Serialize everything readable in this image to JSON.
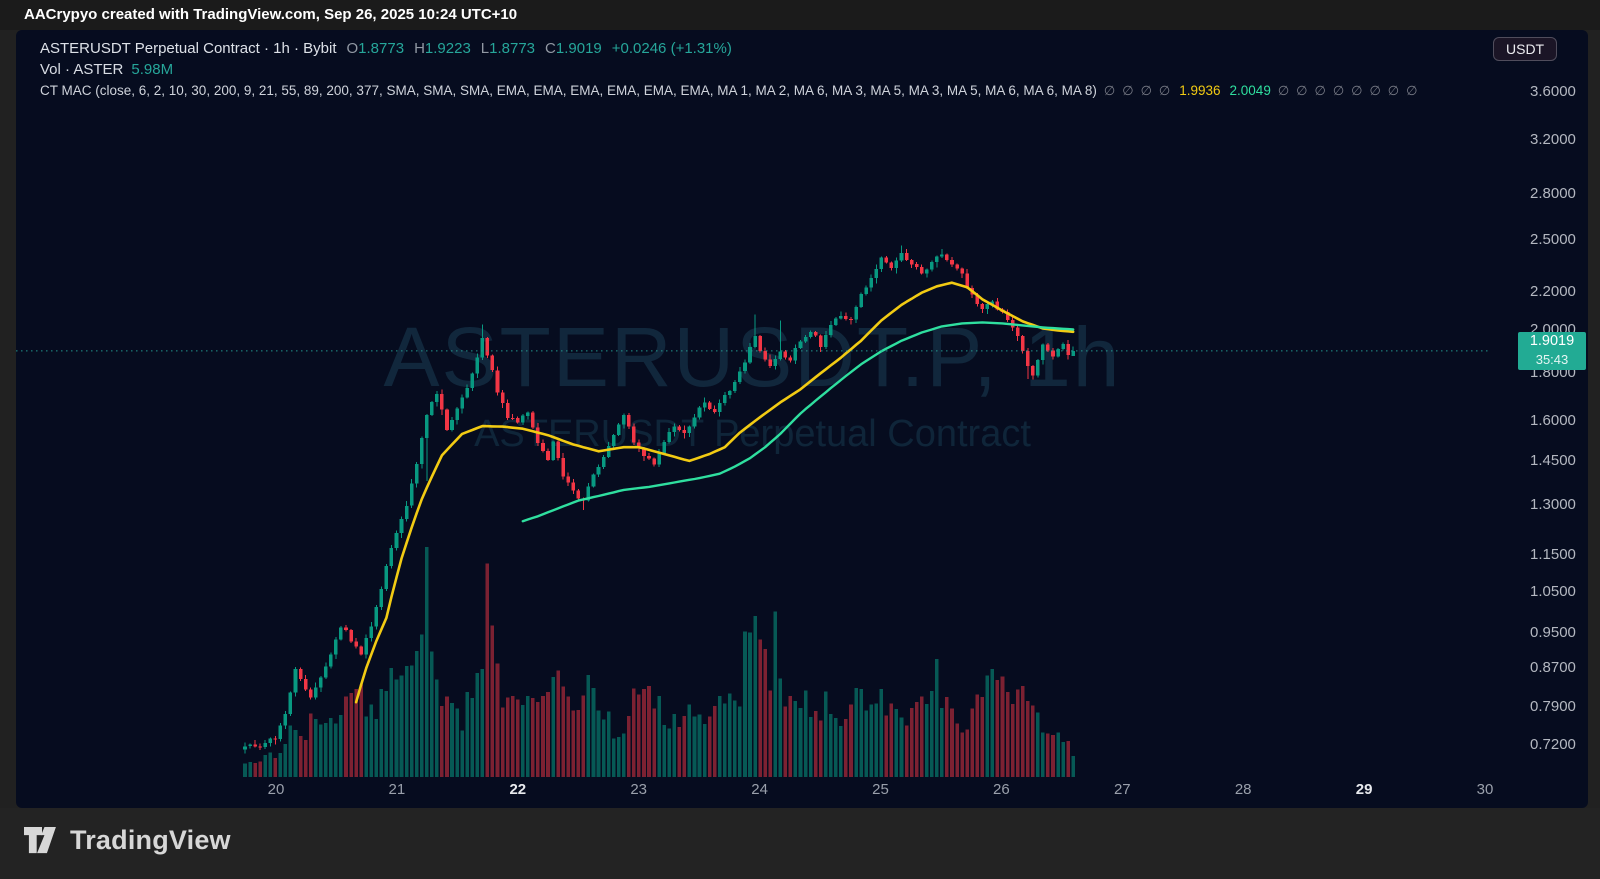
{
  "attribution_bar": {
    "text": "AACrypyo created with TradingView.com, Sep 26, 2025 10:24 UTC+10"
  },
  "header": {
    "symbol_line": {
      "text": "ASTERUSDT Perpetual Contract · 1h · Bybit",
      "ohlc": [
        {
          "label": "O",
          "value": "1.8773"
        },
        {
          "label": "H",
          "value": "1.9223"
        },
        {
          "label": "L",
          "value": "1.8773"
        },
        {
          "label": "C",
          "value": "1.9019"
        }
      ],
      "change": "+0.0246 (+1.31%)"
    },
    "volume_line": {
      "label": "Vol · ASTER",
      "value": "5.98M"
    },
    "indicator_line": {
      "name": "CT MAC (close, 6, 2, 10, 30, 200, 9, 21, 55, 89, 200, 377, SMA, SMA, SMA, EMA, EMA, EMA, EMA, EMA, EMA, MA 1, MA 2, MA 6, MA 3, MA 5, MA 3, MA 5, MA 6, MA 6, MA 8)",
      "empty_symbol": "∅",
      "empty_before": 4,
      "values": [
        {
          "text": "1.9936",
          "color": "#f2cb13"
        },
        {
          "text": "2.0049",
          "color": "#2fdf9f"
        }
      ],
      "empty_after": 8
    }
  },
  "currency_button": {
    "label": "USDT"
  },
  "watermark": {
    "line1": "ASTERUSDT.P, 1h",
    "line2": "ASTERUSDT Perpetual Contract"
  },
  "price_scale": {
    "ticks": [
      {
        "label": "3.6000",
        "value": 3.6
      },
      {
        "label": "3.2000",
        "value": 3.2
      },
      {
        "label": "2.8000",
        "value": 2.8
      },
      {
        "label": "2.5000",
        "value": 2.5
      },
      {
        "label": "2.2000",
        "value": 2.2
      },
      {
        "label": "2.0000",
        "value": 2.0
      },
      {
        "label": "1.8000",
        "value": 1.8
      },
      {
        "label": "1.6000",
        "value": 1.6
      },
      {
        "label": "1.4500",
        "value": 1.45
      },
      {
        "label": "1.3000",
        "value": 1.3
      },
      {
        "label": "1.1500",
        "value": 1.15
      },
      {
        "label": "1.0500",
        "value": 1.05
      },
      {
        "label": "0.9500",
        "value": 0.95
      },
      {
        "label": "0.8700",
        "value": 0.87
      },
      {
        "label": "0.7900",
        "value": 0.79
      },
      {
        "label": "0.7200",
        "value": 0.72
      }
    ],
    "current": {
      "price": "1.9019",
      "countdown": "35:43",
      "value": 1.9019
    }
  },
  "time_scale": {
    "ticks": [
      {
        "label": "20",
        "bold": false
      },
      {
        "label": "21",
        "bold": false
      },
      {
        "label": "22",
        "bold": true
      },
      {
        "label": "23",
        "bold": false
      },
      {
        "label": "24",
        "bold": false
      },
      {
        "label": "25",
        "bold": false
      },
      {
        "label": "26",
        "bold": false
      },
      {
        "label": "27",
        "bold": false
      },
      {
        "label": "28",
        "bold": false
      },
      {
        "label": "29",
        "bold": true
      },
      {
        "label": "30",
        "bold": false
      }
    ]
  },
  "footer": {
    "brand": "TradingView"
  },
  "colors": {
    "background": "#060c1f",
    "up": "#089981",
    "down": "#f23645",
    "volume_up": "rgba(8,153,129,0.55)",
    "volume_down": "rgba(242,54,69,0.50)",
    "ma_yellow": "#f2cb13",
    "ma_green": "#2fdf9f",
    "price_line": "#26a69a",
    "badge": "#22ab94",
    "header_teal": "#26a69a"
  },
  "chart_data": {
    "type": "candlestick",
    "symbol": "ASTERUSDT.P",
    "interval": "1h",
    "exchange": "Bybit",
    "title": "ASTERUSDT Perpetual Contract",
    "legend_position": "top-left",
    "grid": false,
    "y_axis": {
      "scale": "log",
      "min": 0.67,
      "max": 3.75,
      "ticks": [
        3.6,
        3.2,
        2.8,
        2.5,
        2.2,
        2.0,
        1.8,
        1.6,
        1.45,
        1.3,
        1.15,
        1.05,
        0.95,
        0.87,
        0.79,
        0.72
      ]
    },
    "x_axis": {
      "unit": "day of Sep 2025",
      "labels": [
        "20",
        "21",
        "22",
        "23",
        "24",
        "25",
        "26",
        "27",
        "28",
        "29",
        "30"
      ],
      "bold_labels": [
        "22",
        "29"
      ],
      "candles_per_day": 24,
      "first_candle_offset_hours": -6
    },
    "hours_total": 165,
    "ohlc_current": {
      "open": 1.8773,
      "high": 1.9223,
      "low": 1.8773,
      "close": 1.9019,
      "change": 0.0246,
      "change_pct": 1.31
    },
    "volume_current_label": "5.98M",
    "close_path": [
      [
        0,
        0.715
      ],
      [
        3,
        0.72
      ],
      [
        6,
        0.735
      ],
      [
        8,
        0.775
      ],
      [
        10,
        0.87
      ],
      [
        12,
        0.83
      ],
      [
        13,
        0.81
      ],
      [
        15,
        0.85
      ],
      [
        17,
        0.9
      ],
      [
        19,
        0.965
      ],
      [
        21,
        0.935
      ],
      [
        23,
        0.9
      ],
      [
        25,
        0.97
      ],
      [
        27,
        1.06
      ],
      [
        28,
        1.12
      ],
      [
        30,
        1.22
      ],
      [
        32,
        1.3
      ],
      [
        34,
        1.44
      ],
      [
        36,
        1.62
      ],
      [
        38,
        1.72
      ],
      [
        40,
        1.57
      ],
      [
        42,
        1.65
      ],
      [
        44,
        1.73
      ],
      [
        46,
        1.88
      ],
      [
        47,
        1.97
      ],
      [
        48,
        1.89
      ],
      [
        50,
        1.72
      ],
      [
        52,
        1.62
      ],
      [
        54,
        1.6
      ],
      [
        56,
        1.63
      ],
      [
        58,
        1.52
      ],
      [
        60,
        1.45
      ],
      [
        61,
        1.53
      ],
      [
        63,
        1.4
      ],
      [
        65,
        1.34
      ],
      [
        67,
        1.31
      ],
      [
        69,
        1.4
      ],
      [
        71,
        1.47
      ],
      [
        73,
        1.55
      ],
      [
        75,
        1.62
      ],
      [
        77,
        1.52
      ],
      [
        79,
        1.47
      ],
      [
        81,
        1.44
      ],
      [
        83,
        1.52
      ],
      [
        85,
        1.58
      ],
      [
        87,
        1.55
      ],
      [
        89,
        1.62
      ],
      [
        91,
        1.68
      ],
      [
        93,
        1.63
      ],
      [
        95,
        1.7
      ],
      [
        97,
        1.76
      ],
      [
        99,
        1.85
      ],
      [
        101,
        1.97
      ],
      [
        102,
        1.9
      ],
      [
        104,
        1.83
      ],
      [
        106,
        1.9
      ],
      [
        108,
        1.86
      ],
      [
        110,
        1.95
      ],
      [
        112,
        2.0
      ],
      [
        114,
        1.93
      ],
      [
        116,
        2.02
      ],
      [
        118,
        2.08
      ],
      [
        120,
        2.05
      ],
      [
        122,
        2.18
      ],
      [
        124,
        2.28
      ],
      [
        126,
        2.38
      ],
      [
        128,
        2.32
      ],
      [
        130,
        2.42
      ],
      [
        132,
        2.36
      ],
      [
        134,
        2.3
      ],
      [
        136,
        2.36
      ],
      [
        138,
        2.41
      ],
      [
        140,
        2.34
      ],
      [
        142,
        2.29
      ],
      [
        144,
        2.18
      ],
      [
        146,
        2.1
      ],
      [
        148,
        2.15
      ],
      [
        150,
        2.08
      ],
      [
        152,
        2.01
      ],
      [
        153,
        1.97
      ],
      [
        154,
        1.9
      ],
      [
        155,
        1.84
      ],
      [
        156,
        1.8
      ],
      [
        157,
        1.86
      ],
      [
        158,
        1.93
      ],
      [
        160,
        1.88
      ],
      [
        162,
        1.93
      ],
      [
        163,
        1.88
      ],
      [
        164,
        1.9019
      ]
    ],
    "wick_events": [
      {
        "i": 36,
        "low": 1.38
      },
      {
        "i": 47,
        "high": 2.03
      },
      {
        "i": 67,
        "low": 1.285
      },
      {
        "i": 101,
        "high": 2.08
      },
      {
        "i": 106,
        "high": 2.05
      },
      {
        "i": 130,
        "high": 2.465
      },
      {
        "i": 138,
        "high": 2.445
      },
      {
        "i": 155,
        "low": 1.775
      }
    ],
    "series": [
      {
        "name": "MA yellow (slow)",
        "color": "#f2cb13",
        "current": 1.9936,
        "points": [
          [
            22,
            0.8
          ],
          [
            24,
            0.87
          ],
          [
            26,
            0.93
          ],
          [
            28,
            0.985
          ],
          [
            31,
            1.14
          ],
          [
            35,
            1.32
          ],
          [
            39,
            1.47
          ],
          [
            43,
            1.55
          ],
          [
            47,
            1.58
          ],
          [
            51,
            1.578
          ],
          [
            55,
            1.57
          ],
          [
            60,
            1.545
          ],
          [
            65,
            1.51
          ],
          [
            70,
            1.485
          ],
          [
            75,
            1.5
          ],
          [
            78,
            1.5
          ],
          [
            82,
            1.48
          ],
          [
            88,
            1.45
          ],
          [
            92,
            1.475
          ],
          [
            95,
            1.5
          ],
          [
            98,
            1.555
          ],
          [
            102,
            1.615
          ],
          [
            106,
            1.675
          ],
          [
            110,
            1.73
          ],
          [
            114,
            1.8
          ],
          [
            118,
            1.87
          ],
          [
            122,
            1.95
          ],
          [
            126,
            2.05
          ],
          [
            130,
            2.13
          ],
          [
            134,
            2.195
          ],
          [
            137,
            2.23
          ],
          [
            140,
            2.25
          ],
          [
            143,
            2.225
          ],
          [
            146,
            2.16
          ],
          [
            150,
            2.1
          ],
          [
            154,
            2.045
          ],
          [
            158,
            2.01
          ],
          [
            161,
            2.0
          ],
          [
            164,
            1.9936
          ]
        ]
      },
      {
        "name": "MA green (fast)",
        "color": "#2fdf9f",
        "current": 2.0049,
        "points": [
          [
            55,
            1.25
          ],
          [
            58,
            1.265
          ],
          [
            62,
            1.29
          ],
          [
            66,
            1.315
          ],
          [
            70,
            1.33
          ],
          [
            75,
            1.35
          ],
          [
            80,
            1.36
          ],
          [
            85,
            1.375
          ],
          [
            90,
            1.39
          ],
          [
            94,
            1.405
          ],
          [
            97,
            1.43
          ],
          [
            100,
            1.46
          ],
          [
            103,
            1.5
          ],
          [
            106,
            1.55
          ],
          [
            110,
            1.63
          ],
          [
            114,
            1.7
          ],
          [
            118,
            1.77
          ],
          [
            122,
            1.84
          ],
          [
            126,
            1.9
          ],
          [
            130,
            1.95
          ],
          [
            134,
            1.99
          ],
          [
            138,
            2.02
          ],
          [
            142,
            2.035
          ],
          [
            146,
            2.04
          ],
          [
            150,
            2.035
          ],
          [
            154,
            2.025
          ],
          [
            158,
            2.015
          ],
          [
            161,
            2.01
          ],
          [
            164,
            2.0049
          ]
        ]
      }
    ],
    "volume_relative": [
      [
        0,
        0.06
      ],
      [
        4,
        0.1
      ],
      [
        6,
        0.12
      ],
      [
        8,
        0.18
      ],
      [
        10,
        0.28
      ],
      [
        12,
        0.22
      ],
      [
        13,
        0.3
      ],
      [
        16,
        0.24
      ],
      [
        19,
        0.34
      ],
      [
        22,
        0.5
      ],
      [
        25,
        0.32
      ],
      [
        27,
        0.42
      ],
      [
        29,
        0.55
      ],
      [
        31,
        0.48
      ],
      [
        33,
        0.6
      ],
      [
        35,
        0.68
      ],
      [
        36,
        0.97
      ],
      [
        37,
        0.79
      ],
      [
        38,
        0.55
      ],
      [
        39,
        0.45
      ],
      [
        41,
        0.34
      ],
      [
        43,
        0.3
      ],
      [
        45,
        0.42
      ],
      [
        47,
        0.53
      ],
      [
        48,
        0.89
      ],
      [
        50,
        0.5
      ],
      [
        52,
        0.37
      ],
      [
        54,
        0.42
      ],
      [
        56,
        0.5
      ],
      [
        58,
        0.4
      ],
      [
        60,
        0.47
      ],
      [
        62,
        0.55
      ],
      [
        64,
        0.37
      ],
      [
        66,
        0.42
      ],
      [
        68,
        0.47
      ],
      [
        70,
        0.32
      ],
      [
        72,
        0.28
      ],
      [
        74,
        0.22
      ],
      [
        76,
        0.33
      ],
      [
        78,
        0.42
      ],
      [
        80,
        0.47
      ],
      [
        82,
        0.35
      ],
      [
        84,
        0.29
      ],
      [
        86,
        0.32
      ],
      [
        88,
        0.37
      ],
      [
        90,
        0.28
      ],
      [
        92,
        0.26
      ],
      [
        94,
        0.34
      ],
      [
        96,
        0.38
      ],
      [
        98,
        0.45
      ],
      [
        100,
        0.84
      ],
      [
        101,
        0.72
      ],
      [
        102,
        0.76
      ],
      [
        104,
        0.5
      ],
      [
        105,
        0.79
      ],
      [
        107,
        0.4
      ],
      [
        109,
        0.37
      ],
      [
        111,
        0.42
      ],
      [
        113,
        0.32
      ],
      [
        115,
        0.37
      ],
      [
        117,
        0.33
      ],
      [
        119,
        0.29
      ],
      [
        121,
        0.39
      ],
      [
        123,
        0.42
      ],
      [
        125,
        0.47
      ],
      [
        127,
        0.34
      ],
      [
        129,
        0.29
      ],
      [
        131,
        0.26
      ],
      [
        133,
        0.32
      ],
      [
        135,
        0.37
      ],
      [
        137,
        0.5
      ],
      [
        139,
        0.37
      ],
      [
        141,
        0.29
      ],
      [
        143,
        0.26
      ],
      [
        145,
        0.42
      ],
      [
        147,
        0.45
      ],
      [
        149,
        0.47
      ],
      [
        151,
        0.37
      ],
      [
        153,
        0.42
      ],
      [
        155,
        0.45
      ],
      [
        157,
        0.3
      ],
      [
        159,
        0.26
      ],
      [
        161,
        0.21
      ],
      [
        163,
        0.16
      ],
      [
        164,
        0.13
      ]
    ]
  }
}
